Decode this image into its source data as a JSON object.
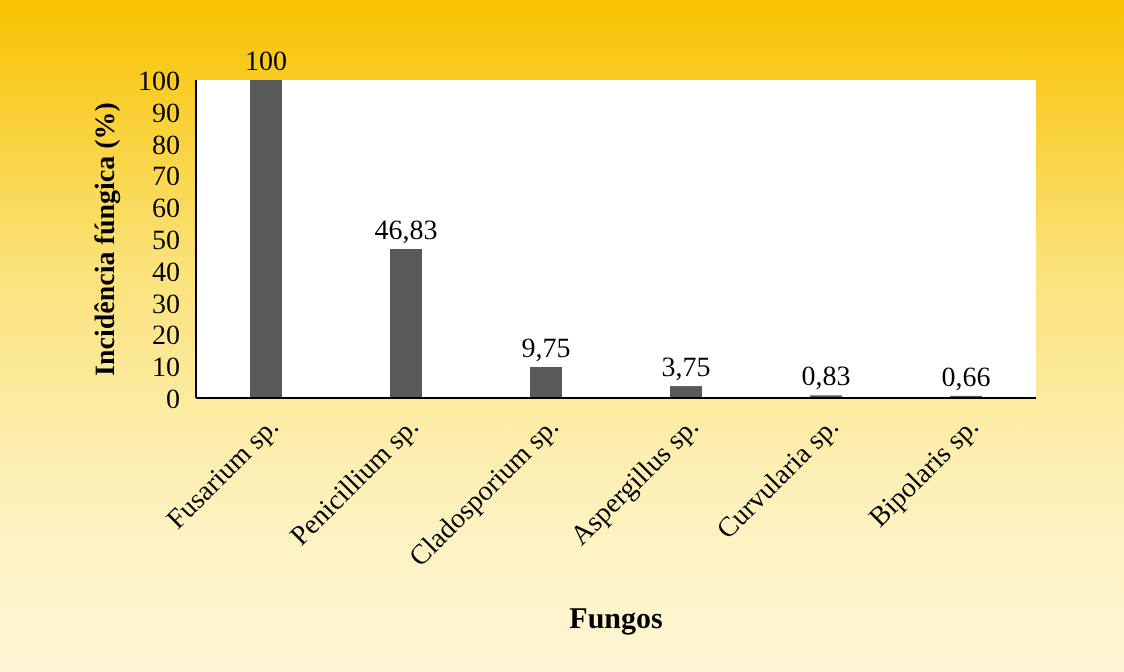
{
  "chart_data": {
    "type": "bar",
    "xlabel": "Fungos",
    "ylabel": "Incidência fúngica (%)",
    "categories": [
      "Fusarium sp.",
      "Penicillium sp.",
      "Cladosporium sp.",
      "Aspergillus sp.",
      "Curvularia sp.",
      "Bipolaris sp."
    ],
    "values": [
      100,
      46.83,
      9.75,
      3.75,
      0.83,
      0.66
    ],
    "value_labels": [
      "100",
      "46,83",
      "9,75",
      "3,75",
      "0,83",
      "0,66"
    ],
    "color": "#595959",
    "ylim": [
      0,
      100
    ],
    "yticks": [
      0,
      10,
      20,
      30,
      40,
      50,
      60,
      70,
      80,
      90,
      100
    ],
    "grid": false,
    "legend": false
  }
}
